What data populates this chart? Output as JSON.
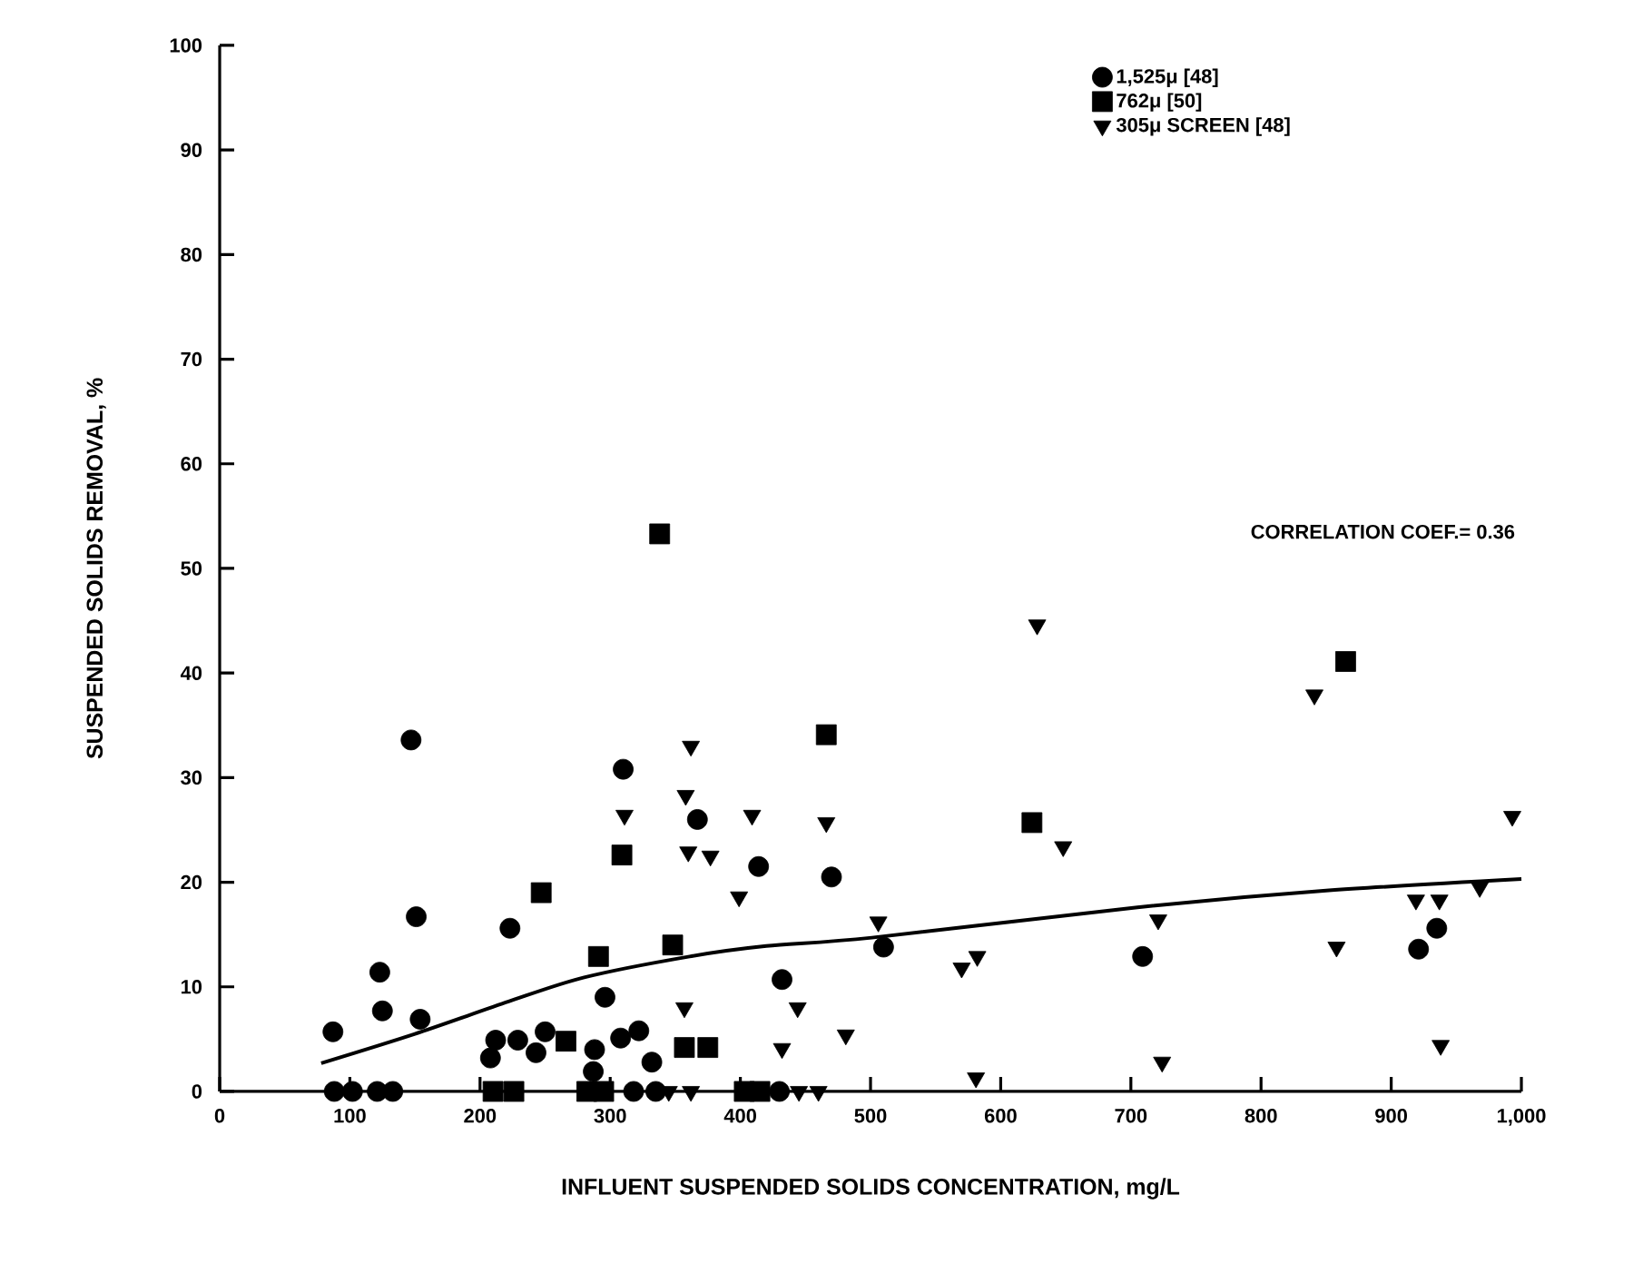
{
  "chart_data": {
    "type": "scatter",
    "xlabel": "INFLUENT SUSPENDED SOLIDS CONCENTRATION, mg/L",
    "ylabel": "SUSPENDED SOLIDS REMOVAL, %",
    "annotations": [
      "CORRELATION COEF.= 0.36"
    ],
    "xlim": [
      0,
      1000
    ],
    "ylim": [
      0,
      100
    ],
    "xticks": [
      0,
      100,
      200,
      300,
      400,
      500,
      600,
      700,
      800,
      900,
      {
        "value": 1000,
        "label": "1,000"
      }
    ],
    "yticks": [
      0,
      10,
      20,
      30,
      40,
      50,
      60,
      70,
      80,
      90,
      100
    ],
    "grid": false,
    "legend": "top right",
    "series": [
      {
        "name": "1,525μ [48]",
        "color": "#000000",
        "marker": "circle",
        "x": [
          87,
          88,
          102,
          121,
          123,
          125,
          133,
          147,
          151,
          154,
          208,
          212,
          223,
          229,
          243,
          250,
          287,
          288,
          296,
          308,
          310,
          318,
          322,
          332,
          335,
          367,
          414,
          430,
          432,
          470,
          510,
          709,
          921,
          935
        ],
        "values": [
          5.7,
          0,
          0,
          0,
          11.4,
          7.7,
          0,
          33.6,
          16.7,
          6.9,
          3.2,
          4.9,
          15.6,
          4.9,
          3.7,
          5.7,
          1.9,
          4.0,
          9.0,
          5.1,
          30.8,
          0,
          5.8,
          2.8,
          0,
          26.0,
          21.5,
          0,
          10.7,
          20.5,
          13.8,
          12.9,
          13.6,
          15.6
        ]
      },
      {
        "name": "762μ [50]",
        "color": "#000000",
        "marker": "square",
        "x": [
          210,
          226,
          247,
          266,
          282,
          291,
          295,
          309,
          338,
          348,
          357,
          375,
          403,
          415,
          466,
          624,
          865
        ],
        "values": [
          0,
          0,
          19,
          4.8,
          0,
          12.9,
          0,
          22.6,
          53.3,
          14.0,
          4.2,
          4.2,
          0,
          0,
          34.1,
          25.7,
          41.1
        ]
      },
      {
        "name": "305μ SCREEN [48]",
        "color": "#000000",
        "marker": "triangle",
        "x": [
          311,
          345,
          357,
          358,
          360,
          362,
          362,
          377,
          399,
          409,
          432,
          444,
          445,
          460,
          466,
          481,
          506,
          570,
          581,
          582,
          628,
          648,
          721,
          724,
          841,
          858,
          919,
          937,
          938,
          968,
          993
        ],
        "values": [
          26.4,
          0,
          8.0,
          28.3,
          22.9,
          33,
          0,
          22.5,
          18.6,
          26.4,
          4.1,
          8.0,
          0,
          0,
          25.7,
          5.4,
          16.2,
          11.8,
          1.3,
          12.9,
          44.6,
          23.4,
          16.4,
          2.8,
          37.9,
          13.8,
          18.3,
          18.3,
          4.4,
          19.5,
          26.3
        ]
      },
      {
        "type": "line",
        "color": "#000000",
        "marker": "none",
        "x": [
          78,
          150,
          222,
          280,
          361,
          420,
          501,
          705,
          850,
          1000
        ],
        "values": [
          2.7,
          5.5,
          8.6,
          10.9,
          12.9,
          13.9,
          14.7,
          17.6,
          19.2,
          20.3
        ]
      }
    ]
  }
}
